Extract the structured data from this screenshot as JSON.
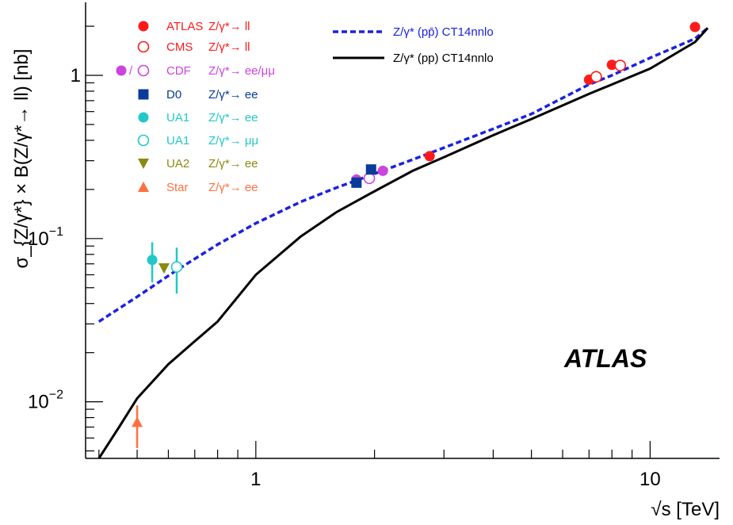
{
  "chart_data": {
    "type": "scatter",
    "xlabel": "√s [TeV]",
    "ylabel": "σ_{Z/γ*} × B(Z/γ*→ ll) [nb]",
    "x_scale": "log",
    "y_scale": "log",
    "xlim": [
      0.37,
      15
    ],
    "ylim": [
      0.0045,
      2.8
    ],
    "x_ticks": [
      {
        "value": 1,
        "label": "1"
      },
      {
        "value": 10,
        "label": "10"
      }
    ],
    "y_ticks": [
      {
        "value": 0.01,
        "label": "10",
        "exp": "−2"
      },
      {
        "value": 0.1,
        "label": "10",
        "exp": "−1"
      },
      {
        "value": 1,
        "label": "1"
      }
    ],
    "watermark": "ATLAS",
    "series": [
      {
        "name": "ATLAS",
        "process": "Z/γ*→ ll",
        "marker": "circle-filled",
        "color": "#ff1a1a",
        "points": [
          {
            "x": 2.76,
            "y": 0.32
          },
          {
            "x": 7.0,
            "y": 0.94
          },
          {
            "x": 8.0,
            "y": 1.16
          },
          {
            "x": 13.0,
            "y": 1.98
          }
        ]
      },
      {
        "name": "CMS",
        "process": "Z/γ*→ ll",
        "marker": "circle-open",
        "color": "#ff1a1a",
        "points": [
          {
            "x": 7.3,
            "y": 0.98
          },
          {
            "x": 8.4,
            "y": 1.15
          }
        ]
      },
      {
        "name": "CDF",
        "process": "Z/γ*→ ee/μμ",
        "marker": "circle-filled",
        "color": "#cc44dd",
        "points": [
          {
            "x": 1.8,
            "y": 0.23
          },
          {
            "x": 2.1,
            "y": 0.26
          }
        ]
      },
      {
        "name": "CDF",
        "process": "Z/γ*→ ee/μμ",
        "marker": "circle-open",
        "color": "#cc44dd",
        "points": [
          {
            "x": 1.94,
            "y": 0.234
          }
        ]
      },
      {
        "name": "D0",
        "process": "Z/γ*→ ee",
        "marker": "square-filled",
        "color": "#0a3a9a",
        "points": [
          {
            "x": 1.8,
            "y": 0.22
          },
          {
            "x": 1.96,
            "y": 0.265
          }
        ]
      },
      {
        "name": "UA1",
        "process": "Z/γ*→ ee",
        "marker": "circle-filled",
        "color": "#22c8c8",
        "points": [
          {
            "x": 0.546,
            "y": 0.074,
            "ylow": 0.054,
            "yhigh": 0.095
          }
        ]
      },
      {
        "name": "UA1",
        "process": "Z/γ*→ μμ",
        "marker": "circle-open",
        "color": "#22c8c8",
        "points": [
          {
            "x": 0.63,
            "y": 0.067,
            "ylow": 0.046,
            "yhigh": 0.088
          }
        ]
      },
      {
        "name": "UA2",
        "process": "Z/γ*→ ee",
        "marker": "triangle-down",
        "color": "#8a8a10",
        "points": [
          {
            "x": 0.585,
            "y": 0.066,
            "ylow": 0.062,
            "yhigh": 0.07
          }
        ]
      },
      {
        "name": "Star",
        "process": "Z/γ*→ ee",
        "marker": "triangle-up",
        "color": "#ff7040",
        "points": [
          {
            "x": 0.5,
            "y": 0.0075,
            "ylow": 0.0052,
            "yhigh": 0.0095
          }
        ]
      }
    ],
    "curves": [
      {
        "name": "Z/γ* (pp̄) CT14nnlo",
        "style": "dashed",
        "color": "#1a22e0",
        "x": [
          0.4,
          0.5,
          0.63,
          0.8,
          1.0,
          1.3,
          1.6,
          1.96,
          2.5,
          3.0,
          4.0,
          5.0,
          7.0,
          8.0,
          10.0,
          13.0,
          14.0
        ],
        "y": [
          0.031,
          0.044,
          0.064,
          0.092,
          0.124,
          0.168,
          0.205,
          0.245,
          0.305,
          0.36,
          0.47,
          0.58,
          0.88,
          1.0,
          1.28,
          1.68,
          1.95
        ]
      },
      {
        "name": "Z/γ* (pp) CT14nnlo",
        "style": "solid",
        "color": "#000000",
        "x": [
          0.4,
          0.45,
          0.5,
          0.6,
          0.7,
          0.8,
          1.0,
          1.3,
          1.6,
          1.96,
          2.5,
          3.0,
          4.0,
          5.0,
          7.0,
          8.0,
          10.0,
          13.0,
          14.0
        ],
        "y": [
          0.0045,
          0.007,
          0.0105,
          0.017,
          0.0235,
          0.031,
          0.06,
          0.103,
          0.145,
          0.19,
          0.26,
          0.315,
          0.43,
          0.54,
          0.77,
          0.88,
          1.1,
          1.6,
          1.95
        ]
      }
    ]
  }
}
